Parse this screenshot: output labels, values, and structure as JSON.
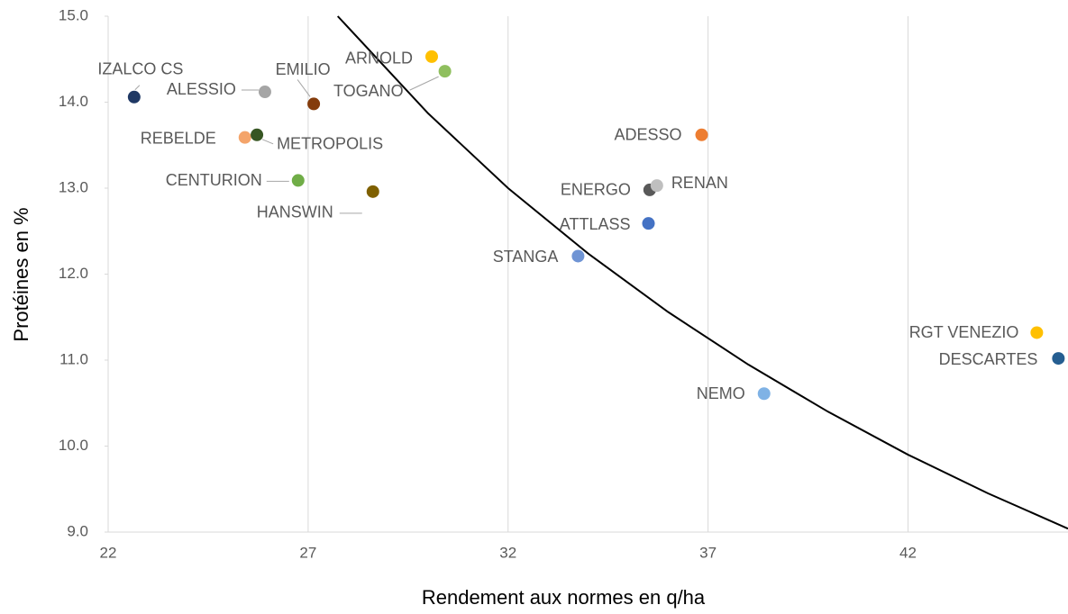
{
  "chart_data": {
    "type": "scatter",
    "x_label": "Rendement aux normes en q/ha",
    "y_label": "Protéines en %",
    "xlim": [
      22,
      46
    ],
    "ylim": [
      9,
      15
    ],
    "xticks": [
      22,
      27,
      32,
      37,
      42
    ],
    "yticks": [
      {
        "value": 9,
        "label": "9.0"
      },
      {
        "value": 10,
        "label": "10.0"
      },
      {
        "value": 11,
        "label": "11.0"
      },
      {
        "value": 12,
        "label": "12.0"
      },
      {
        "value": 13,
        "label": "13.0"
      },
      {
        "value": 14,
        "label": "14.0"
      },
      {
        "value": 15,
        "label": "15.0"
      }
    ],
    "grid": "x",
    "labels": [
      "IZALCO CS",
      "ALESSIO",
      "EMILIO",
      "ARNOLD",
      "TOGANO",
      "REBELDE",
      "METROPOLIS",
      "CENTURION",
      "HANSWIN",
      "ADESSO",
      "ENERGO",
      "RENAN",
      "ATTLASS",
      "STANGA",
      "RGT VENEZIO",
      "DESCARTES",
      "NEMO"
    ],
    "x": [
      22.65,
      25.92,
      27.14,
      30.09,
      30.42,
      25.42,
      25.72,
      26.75,
      28.62,
      36.84,
      35.54,
      35.72,
      35.51,
      33.75,
      45.22,
      45.76,
      38.4
    ],
    "values": [
      14.06,
      14.12,
      13.98,
      14.53,
      14.36,
      13.59,
      13.62,
      13.09,
      12.96,
      13.62,
      12.98,
      13.03,
      12.59,
      12.21,
      11.32,
      11.02,
      10.61
    ],
    "colors": [
      "#1f3864",
      "#a5a5a5",
      "#843c0c",
      "#ffc000",
      "#8fbf5e",
      "#f4a46a",
      "#375623",
      "#70ad47",
      "#7f6000",
      "#ed7d31",
      "#595959",
      "#bfbfbf",
      "#4472c4",
      "#6f94d4",
      "#ffc000",
      "#255e91",
      "#7fb2e5"
    ],
    "curve": {
      "color": "#000000",
      "x": [
        27.74,
        30,
        32,
        34,
        36,
        38,
        40,
        42,
        44,
        46
      ],
      "values": [
        15.0,
        13.87,
        13.0,
        12.24,
        11.56,
        10.95,
        10.4,
        9.9,
        9.45,
        9.04
      ]
    }
  }
}
